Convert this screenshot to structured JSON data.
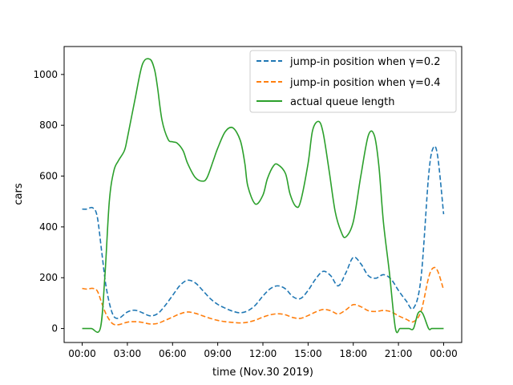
{
  "chart_data": {
    "type": "line",
    "title": "",
    "xlabel": "time (Nov.30 2019)",
    "ylabel": "cars",
    "x_unit": "hour of day",
    "x_ticks": [
      {
        "value": 0,
        "label": "00:00"
      },
      {
        "value": 3,
        "label": "03:00"
      },
      {
        "value": 6,
        "label": "06:00"
      },
      {
        "value": 9,
        "label": "09:00"
      },
      {
        "value": 12,
        "label": "12:00"
      },
      {
        "value": 15,
        "label": "15:00"
      },
      {
        "value": 18,
        "label": "18:00"
      },
      {
        "value": 21,
        "label": "21:00"
      },
      {
        "value": 24,
        "label": "00:00"
      }
    ],
    "y_ticks": [
      0,
      200,
      400,
      600,
      800,
      1000
    ],
    "xlim": [
      -1.2,
      25.2
    ],
    "ylim": [
      -55,
      1110
    ],
    "grid": false,
    "legend_position": "top-right",
    "series": [
      {
        "name": "jump-in position when γ=0.2",
        "color": "#1f77b4",
        "style": "dashed",
        "x": [
          0,
          0.3,
          0.7,
          1.0,
          1.3,
          1.6,
          2.0,
          2.4,
          3.0,
          3.5,
          4.0,
          4.5,
          5.0,
          5.5,
          6.0,
          6.5,
          7.0,
          7.5,
          8.0,
          8.5,
          9.0,
          9.5,
          10.0,
          10.5,
          11.0,
          11.5,
          12.0,
          12.5,
          13.0,
          13.5,
          14.0,
          14.5,
          15.0,
          15.5,
          16.0,
          16.5,
          17.0,
          17.5,
          18.0,
          18.5,
          19.0,
          19.5,
          20.0,
          20.5,
          21.0,
          21.5,
          22.0,
          22.5,
          23.0,
          23.3,
          23.6,
          24.0
        ],
        "values": [
          470,
          470,
          475,
          440,
          300,
          160,
          60,
          40,
          65,
          72,
          62,
          50,
          58,
          90,
          130,
          170,
          190,
          180,
          150,
          118,
          95,
          80,
          68,
          62,
          70,
          92,
          128,
          157,
          168,
          156,
          125,
          118,
          150,
          195,
          225,
          208,
          168,
          218,
          280,
          255,
          208,
          198,
          212,
          195,
          150,
          110,
          80,
          200,
          600,
          710,
          680,
          450
        ]
      },
      {
        "name": "jump-in position when γ=0.4",
        "color": "#ff7f0e",
        "style": "dashed",
        "x": [
          0,
          0.3,
          0.7,
          1.0,
          1.3,
          1.6,
          2.0,
          2.4,
          3.0,
          3.5,
          4.0,
          4.5,
          5.0,
          5.5,
          6.0,
          6.5,
          7.0,
          7.5,
          8.0,
          8.5,
          9.0,
          9.5,
          10.0,
          10.5,
          11.0,
          11.5,
          12.0,
          12.5,
          13.0,
          13.5,
          14.0,
          14.5,
          15.0,
          15.5,
          16.0,
          16.5,
          17.0,
          17.5,
          18.0,
          18.5,
          19.0,
          19.5,
          20.0,
          20.5,
          21.0,
          21.5,
          22.0,
          22.5,
          23.0,
          23.3,
          23.6,
          24.0
        ],
        "values": [
          158,
          155,
          158,
          148,
          100,
          55,
          20,
          15,
          25,
          27,
          24,
          18,
          20,
          32,
          45,
          58,
          65,
          60,
          50,
          40,
          32,
          27,
          24,
          22,
          25,
          33,
          45,
          54,
          58,
          54,
          43,
          40,
          51,
          65,
          75,
          70,
          57,
          73,
          94,
          86,
          70,
          67,
          71,
          66,
          50,
          37,
          27,
          68,
          200,
          238,
          227,
          152
        ]
      },
      {
        "name": "actual queue length",
        "color": "#2ca02c",
        "style": "solid",
        "x": [
          0,
          0.6,
          1.2,
          1.5,
          1.8,
          2.1,
          2.4,
          2.8,
          3.0,
          3.5,
          4.0,
          4.5,
          4.8,
          5.0,
          5.3,
          5.7,
          6.0,
          6.3,
          6.7,
          7.0,
          7.5,
          8.0,
          8.3,
          8.7,
          9.0,
          9.5,
          10.0,
          10.5,
          10.8,
          11.0,
          11.5,
          12.0,
          12.3,
          12.7,
          13.0,
          13.5,
          13.8,
          14.2,
          14.5,
          15.0,
          15.3,
          15.7,
          16.0,
          16.4,
          16.8,
          17.2,
          17.5,
          18.0,
          18.5,
          19.0,
          19.4,
          19.7,
          20.0,
          20.4,
          20.8,
          21.1,
          21.4,
          21.7,
          22.0,
          22.3,
          22.6,
          23.0,
          23.2,
          23.4,
          23.6,
          23.8,
          24.0
        ],
        "values": [
          0,
          0,
          0,
          200,
          500,
          620,
          660,
          700,
          750,
          900,
          1040,
          1060,
          1020,
          950,
          820,
          745,
          735,
          730,
          700,
          650,
          595,
          580,
          595,
          660,
          710,
          775,
          790,
          740,
          650,
          560,
          490,
          525,
          590,
          640,
          645,
          610,
          530,
          480,
          500,
          650,
          780,
          815,
          770,
          620,
          460,
          380,
          360,
          420,
          600,
          760,
          760,
          640,
          420,
          220,
          0,
          0,
          0,
          0,
          0,
          60,
          60,
          0,
          0,
          0,
          0,
          0,
          0
        ]
      }
    ]
  }
}
